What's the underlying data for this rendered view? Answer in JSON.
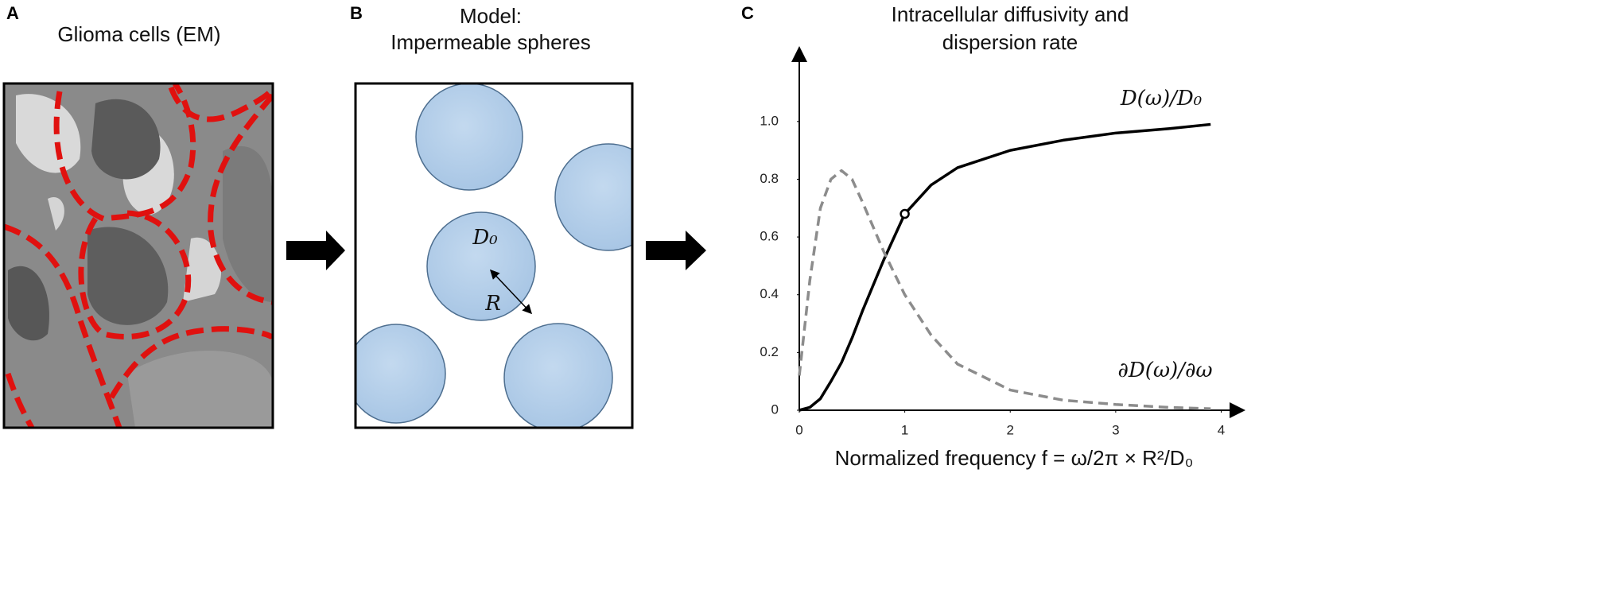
{
  "panels": {
    "a": {
      "label": "A",
      "title": "Glioma cells (EM)"
    },
    "b": {
      "label": "B",
      "title": [
        "Model:",
        "Impermeable spheres"
      ],
      "diffusivity": "D₀",
      "radius": "R"
    }
  },
  "chart_data": {
    "type": "line",
    "label": "C",
    "title": [
      "Intracellular diffusivity and",
      "dispersion rate"
    ],
    "x_label": "Normalized frequency f = ω/2π × R²/D₀",
    "x": [
      0,
      0.1,
      0.2,
      0.3,
      0.4,
      0.5,
      0.6,
      0.8,
      1,
      1.25,
      1.5,
      2,
      2.5,
      3,
      3.5,
      3.9
    ],
    "series": [
      {
        "name": "D(ω)/D₀",
        "color": "#000000",
        "dash": false,
        "values": [
          0,
          0.01,
          0.04,
          0.1,
          0.165,
          0.25,
          0.345,
          0.52,
          0.68,
          0.78,
          0.84,
          0.9,
          0.935,
          0.96,
          0.975,
          0.99
        ]
      },
      {
        "name": "∂D(ω)/∂ω",
        "color": "#8c8c8c",
        "dash": true,
        "values": [
          0.12,
          0.45,
          0.7,
          0.8,
          0.83,
          0.8,
          0.72,
          0.55,
          0.4,
          0.26,
          0.16,
          0.07,
          0.035,
          0.02,
          0.01,
          0.005
        ]
      }
    ],
    "marker": {
      "series": 0,
      "index": 8
    },
    "xlim": [
      0,
      4.2
    ],
    "ylim": [
      0,
      1.25
    ],
    "xticks": [
      0,
      1,
      2,
      3,
      4
    ],
    "yticks": [
      0,
      0.2,
      0.4,
      0.6,
      0.8,
      {
        "value": 1,
        "label": "1.0"
      }
    ],
    "grid": false
  }
}
